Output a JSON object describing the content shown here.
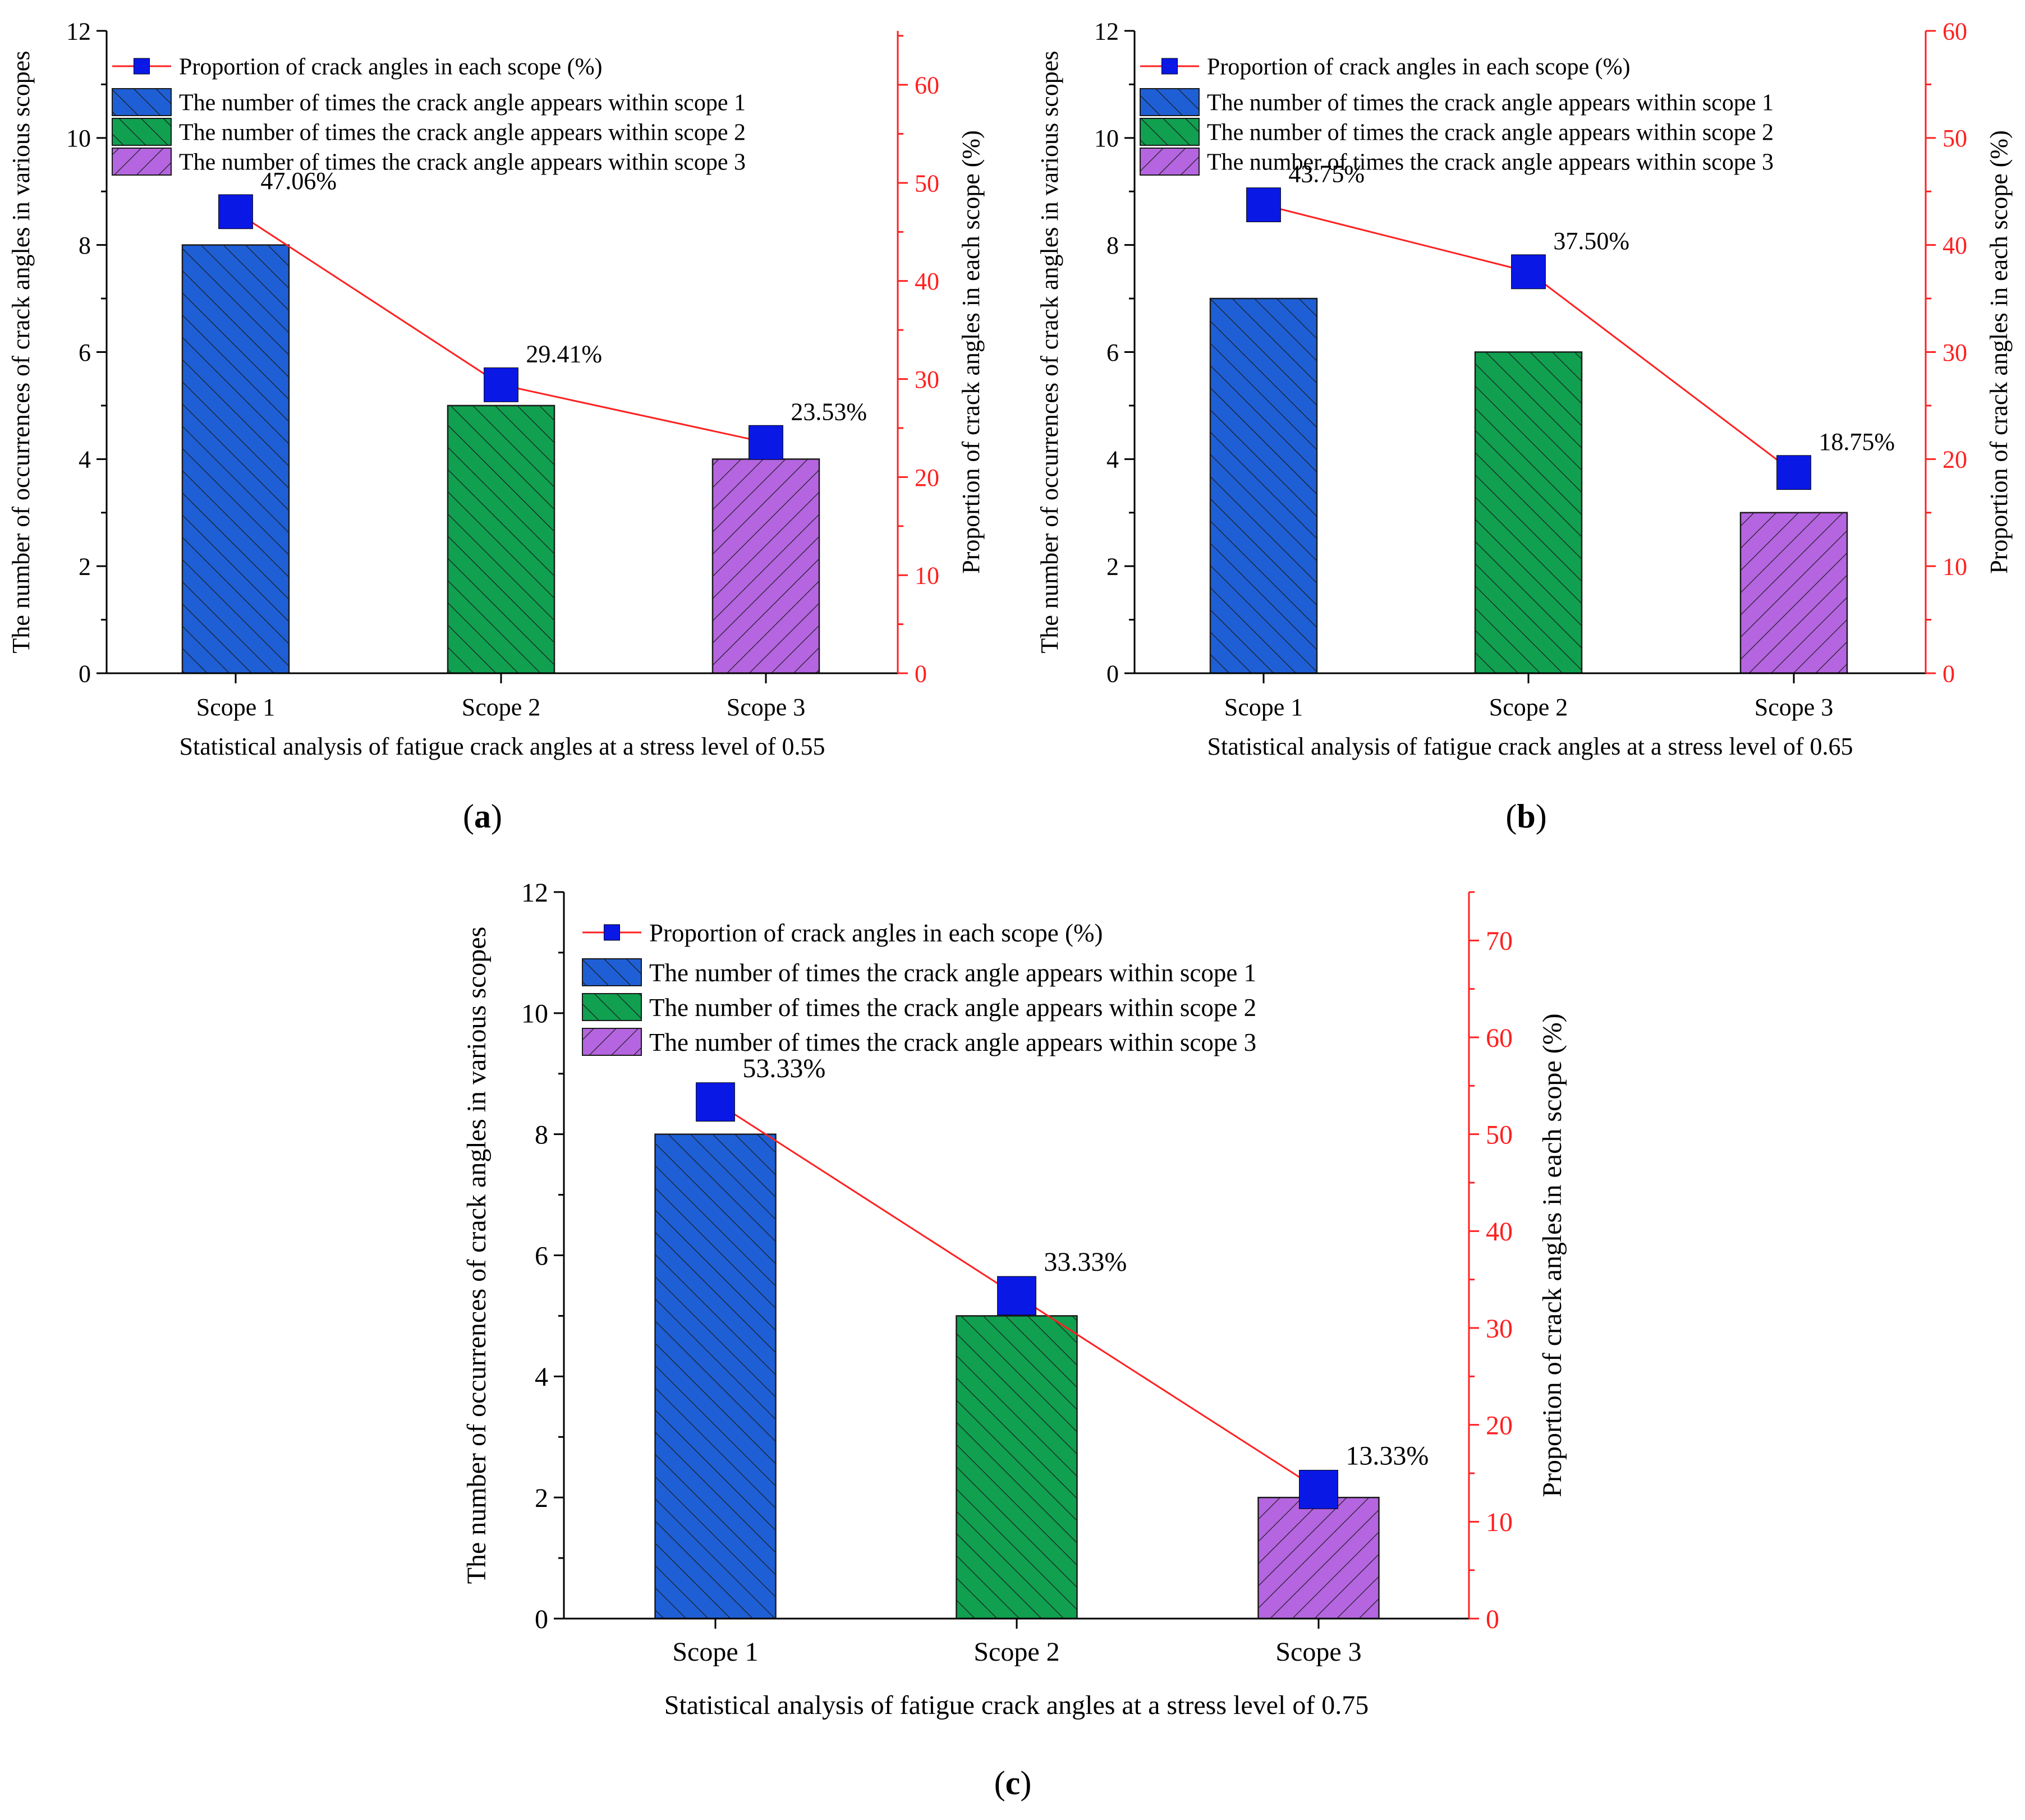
{
  "chart_data": [
    {
      "panel_label": "a",
      "type": "bar",
      "xlabel": "Statistical analysis of fatigue crack angles at a stress level of 0.55",
      "ylabel": "The number of occurrences of crack angles in various scopes",
      "y2label": "Proportion of crack angles in each scope (%)",
      "categories": [
        "Scope 1",
        "Scope 2",
        "Scope 3"
      ],
      "ylim": [
        0,
        12
      ],
      "yticks": [
        0,
        2,
        4,
        6,
        8,
        10,
        12
      ],
      "y2lim": [
        0,
        65.5
      ],
      "y2ticks": [
        0,
        10,
        20,
        30,
        40,
        50,
        60
      ],
      "series": [
        {
          "name": "The number of times the crack angle appears within scope 1",
          "category": "Scope 1",
          "value": 8,
          "color": "#1f5fd6"
        },
        {
          "name": "The number of times the crack angle appears within scope 2",
          "category": "Scope 2",
          "value": 5,
          "color": "#10a050"
        },
        {
          "name": "The number of times the crack angle appears within scope 3",
          "category": "Scope 3",
          "value": 4,
          "color": "#b565e0"
        }
      ],
      "line": {
        "name": "Proportion of crack angles in each scope (%)",
        "values": [
          47.06,
          29.41,
          23.53
        ],
        "labels": [
          "47.06%",
          "29.41%",
          "23.53%"
        ],
        "color": "#ff2020",
        "marker_color": "#0a18e6"
      }
    },
    {
      "panel_label": "b",
      "type": "bar",
      "xlabel": "Statistical analysis of fatigue crack angles at a stress level of 0.65",
      "ylabel": "The number of occurrences of crack angles in various scopes",
      "y2label": "Proportion of crack angles in each scope (%)",
      "categories": [
        "Scope 1",
        "Scope 2",
        "Scope 3"
      ],
      "ylim": [
        0,
        12
      ],
      "yticks": [
        0,
        2,
        4,
        6,
        8,
        10,
        12
      ],
      "y2lim": [
        0,
        60
      ],
      "y2ticks": [
        0,
        10,
        20,
        30,
        40,
        50,
        60
      ],
      "series": [
        {
          "name": "The number of times the crack angle appears within scope 1",
          "category": "Scope 1",
          "value": 7,
          "color": "#1f5fd6"
        },
        {
          "name": "The number of times the crack angle appears within scope 2",
          "category": "Scope 2",
          "value": 6,
          "color": "#10a050"
        },
        {
          "name": "The number of times the crack angle appears within scope 3",
          "category": "Scope 3",
          "value": 3,
          "color": "#b565e0"
        }
      ],
      "line": {
        "name": "Proportion of crack angles in each scope (%)",
        "values": [
          43.75,
          37.5,
          18.75
        ],
        "labels": [
          "43.75%",
          "37.50%",
          "18.75%"
        ],
        "color": "#ff2020",
        "marker_color": "#0a18e6"
      }
    },
    {
      "panel_label": "c",
      "type": "bar",
      "xlabel": "Statistical analysis of fatigue crack angles at a stress level of 0.75",
      "ylabel": "The number of occurrences of crack angles in various scopes",
      "y2label": "Proportion of crack angles in each scope (%)",
      "categories": [
        "Scope 1",
        "Scope 2",
        "Scope 3"
      ],
      "ylim": [
        0,
        12
      ],
      "yticks": [
        0,
        2,
        4,
        6,
        8,
        10,
        12
      ],
      "y2lim": [
        0,
        75
      ],
      "y2ticks": [
        0,
        10,
        20,
        30,
        40,
        50,
        60,
        70
      ],
      "series": [
        {
          "name": "The number of times the crack angle appears within scope 1",
          "category": "Scope 1",
          "value": 8,
          "color": "#1f5fd6"
        },
        {
          "name": "The number of times the crack angle appears within scope 2",
          "category": "Scope 2",
          "value": 5,
          "color": "#10a050"
        },
        {
          "name": "The number of times the crack angle appears within scope 3",
          "category": "Scope 3",
          "value": 2,
          "color": "#b565e0"
        }
      ],
      "line": {
        "name": "Proportion of crack angles in each scope (%)",
        "values": [
          53.33,
          33.33,
          13.33
        ],
        "labels": [
          "53.33%",
          "33.33%",
          "13.33%"
        ],
        "color": "#ff2020",
        "marker_color": "#0a18e6"
      }
    }
  ]
}
